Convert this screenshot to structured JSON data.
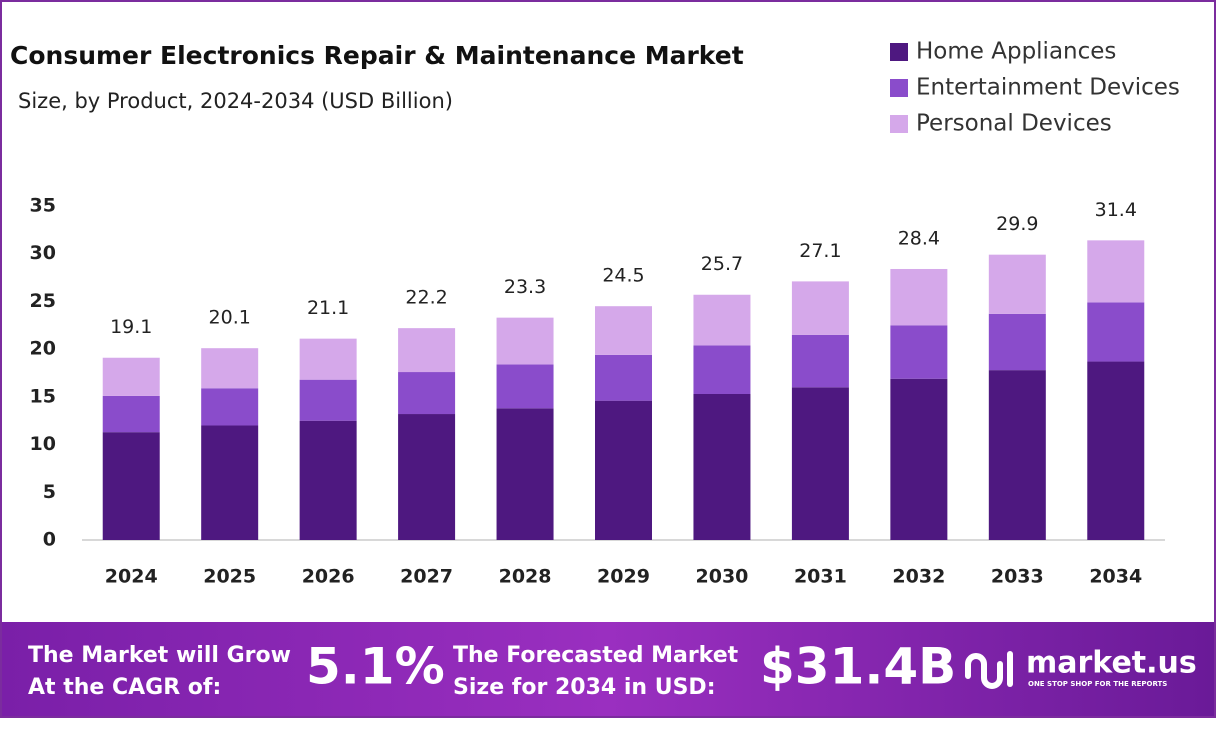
{
  "chart_data": {
    "type": "stacked-bar",
    "title": "Consumer Electronics Repair & Maintenance Market",
    "subtitle": "Size, by Product, 2024-2034 (USD Billion)",
    "categories": [
      "2024",
      "2025",
      "2026",
      "2027",
      "2028",
      "2029",
      "2030",
      "2031",
      "2032",
      "2033",
      "2034"
    ],
    "series": [
      {
        "name": "Home Appliances",
        "color": "#4e1880",
        "values": [
          11.3,
          12.0,
          12.5,
          13.2,
          13.8,
          14.6,
          15.3,
          16.0,
          16.9,
          17.8,
          18.7
        ]
      },
      {
        "name": "Entertainment Devices",
        "color": "#8a4ccb",
        "values": [
          3.8,
          3.9,
          4.3,
          4.4,
          4.6,
          4.8,
          5.1,
          5.5,
          5.6,
          5.9,
          6.2
        ]
      },
      {
        "name": "Personal Devices",
        "color": "#d5a8ea",
        "values": [
          4.0,
          4.2,
          4.3,
          4.6,
          4.9,
          5.1,
          5.3,
          5.6,
          5.9,
          6.2,
          6.5
        ]
      }
    ],
    "totals": [
      19.1,
      20.1,
      21.1,
      22.2,
      23.3,
      24.5,
      25.7,
      27.1,
      28.4,
      29.9,
      31.4
    ],
    "ylim": [
      0,
      35
    ],
    "yticks": [
      0,
      5,
      10,
      15,
      20,
      25,
      30,
      35
    ],
    "grid": false
  },
  "footer": {
    "line1a": "The Market will Grow",
    "line1b": "At the CAGR of:",
    "cagr": "5.1%",
    "line2a": "The Forecasted Market",
    "line2b": "Size for 2034 in USD:",
    "size": "$31.4B",
    "brand": "market.us",
    "tagline": "ONE STOP SHOP FOR THE REPORTS"
  }
}
